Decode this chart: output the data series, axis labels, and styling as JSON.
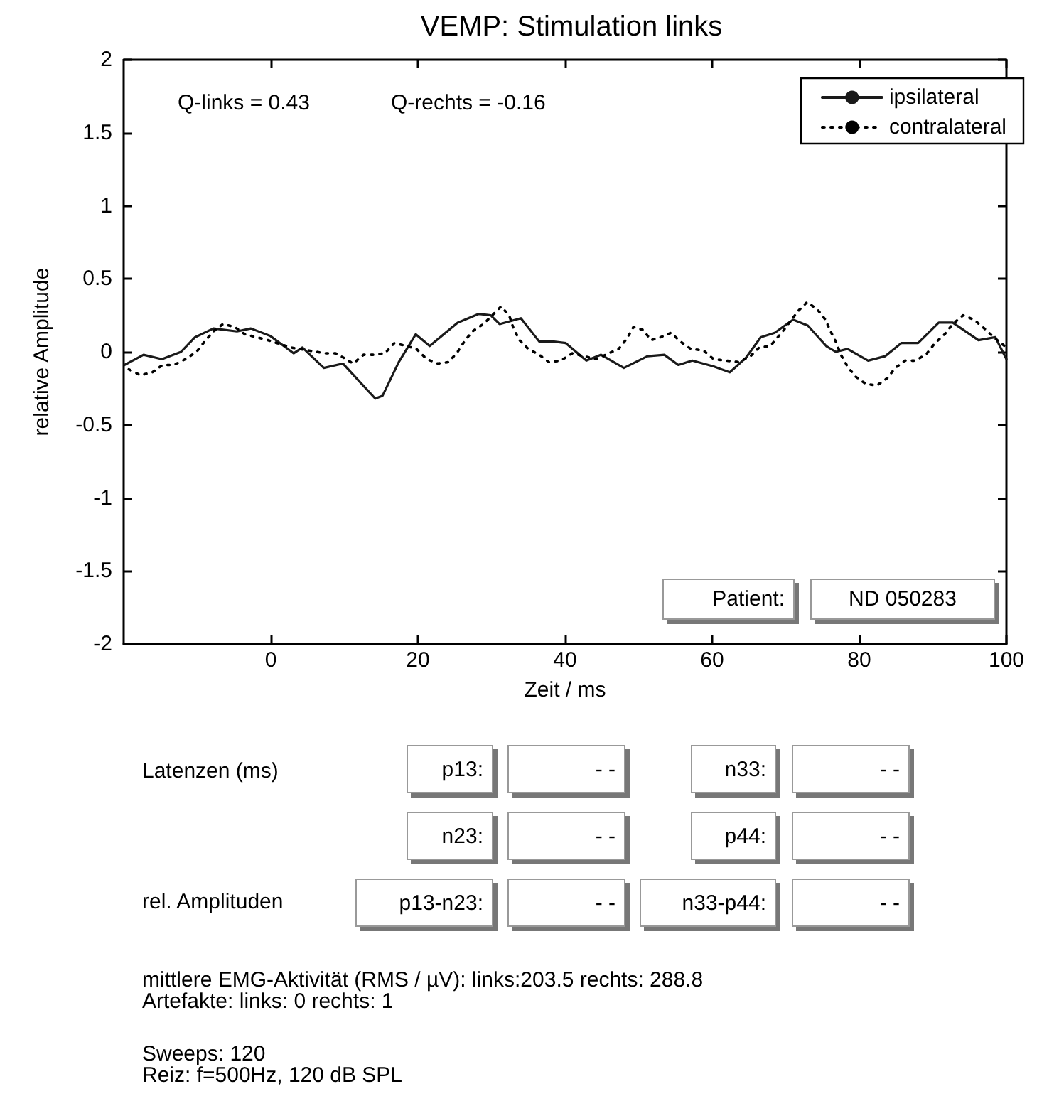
{
  "chart_data": {
    "type": "line",
    "title": "VEMP: Stimulation links",
    "xlabel": "Zeit / ms",
    "ylabel": "relative Amplitude",
    "xlim": [
      -20,
      100
    ],
    "xticks": [
      0,
      20,
      40,
      60,
      80,
      100
    ],
    "ylim": [
      -2,
      2
    ],
    "yticks": [
      -2,
      -1.5,
      -1,
      -0.5,
      0,
      0.5,
      1,
      1.5,
      2
    ],
    "grid": false,
    "legend": "top right",
    "marker": "none",
    "series": [
      {
        "name": "ipsilateral",
        "color": "#1a1a1a",
        "line_style": "solid",
        "x": [
          -19.9,
          -17.3,
          -14.8,
          -12.2,
          -10.3,
          -7.8,
          -4.6,
          -2.7,
          -0.1,
          3.1,
          4.3,
          7.2,
          9.8,
          12.0,
          14.2,
          15.2,
          17.4,
          19.7,
          21.6,
          25.4,
          28.3,
          29.9,
          31.1,
          34.0,
          36.5,
          38.5,
          40.1,
          42.9,
          44.9,
          48.0,
          51.2,
          53.5,
          55.4,
          57.3,
          60.2,
          62.4,
          64.6,
          66.6,
          68.5,
          71.0,
          73.0,
          75.5,
          76.8,
          78.4,
          81.2,
          83.5,
          85.7,
          88.0,
          90.8,
          92.7,
          96.2,
          98.5,
          100
        ],
        "values": [
          -0.09,
          -0.02,
          -0.05,
          0,
          0.1,
          0.16,
          0.14,
          0.16,
          0.11,
          -0.01,
          0.03,
          -0.11,
          -0.08,
          -0.2,
          -0.32,
          -0.3,
          -0.07,
          0.12,
          0.04,
          0.2,
          0.26,
          0.25,
          0.19,
          0.23,
          0.07,
          0.07,
          0.06,
          -0.06,
          -0.02,
          -0.11,
          -0.03,
          -0.02,
          -0.09,
          -0.06,
          -0.1,
          -0.14,
          -0.04,
          0.1,
          0.13,
          0.22,
          0.18,
          0.04,
          0,
          0.02,
          -0.06,
          -0.03,
          0.06,
          0.06,
          0.2,
          0.2,
          0.08,
          0.1,
          -0.05
        ]
      },
      {
        "name": "contralateral",
        "color": "#000000",
        "line_style": "dotted",
        "x": [
          -19.3,
          -17.7,
          -16.1,
          -14.7,
          -13.2,
          -11.6,
          -10.1,
          -9.0,
          -7.8,
          -6.5,
          -4.9,
          -3.5,
          -1.9,
          -0.4,
          2.7,
          7.4,
          8.8,
          9.9,
          11.2,
          12.6,
          13.9,
          15.5,
          16.8,
          18.4,
          19.8,
          21.2,
          22.7,
          24.2,
          25.4,
          26.3,
          27.4,
          28.9,
          31.3,
          32.4,
          33.0,
          33.8,
          35.0,
          36.5,
          37.8,
          39.4,
          41.0,
          44.2,
          47.3,
          48.4,
          49.3,
          50.6,
          51.7,
          53.0,
          54.4,
          55.7,
          57.1,
          58.8,
          60.2,
          61.9,
          63.6,
          65.2,
          66.4,
          67.9,
          69.6,
          71.7,
          72.9,
          74.3,
          75.4,
          76.1,
          76.9,
          77.5,
          78.4,
          79.5,
          80.9,
          82.4,
          83.8,
          84.9,
          86.2,
          87.7,
          89.2,
          90.3,
          91.6,
          92.7,
          94.1,
          95.6,
          97.0,
          98.5,
          100
        ],
        "values": [
          -0.12,
          -0.16,
          -0.14,
          -0.09,
          -0.09,
          -0.05,
          0,
          0.07,
          0.14,
          0.19,
          0.17,
          0.12,
          0.1,
          0.08,
          0.03,
          -0.01,
          -0.01,
          -0.04,
          -0.08,
          -0.02,
          -0.02,
          -0.01,
          0.06,
          0.04,
          0.02,
          -0.05,
          -0.08,
          -0.07,
          0,
          0.07,
          0.14,
          0.19,
          0.31,
          0.25,
          0.16,
          0.08,
          0.02,
          -0.02,
          -0.07,
          -0.06,
          -0.01,
          -0.05,
          0.02,
          0.09,
          0.17,
          0.15,
          0.08,
          0.1,
          0.13,
          0.07,
          0.02,
          0.01,
          -0.05,
          -0.06,
          -0.07,
          -0.03,
          0.03,
          0.04,
          0.14,
          0.28,
          0.34,
          0.29,
          0.22,
          0.14,
          0.06,
          -0.02,
          -0.1,
          -0.17,
          -0.22,
          -0.23,
          -0.18,
          -0.11,
          -0.06,
          -0.06,
          -0.01,
          0.06,
          0.12,
          0.19,
          0.25,
          0.22,
          0.16,
          0.09,
          0.03
        ]
      }
    ],
    "annotations": [
      "Q-links = 0.43",
      "Q-rechts = -0.16",
      "Patient:",
      "ND 050283",
      "Latenzen (ms)",
      "p13:",
      "- -",
      "n33:",
      "- -",
      "n23:",
      "- -",
      "p44:",
      "- -",
      "rel. Amplituden",
      "p13-n23:",
      "- -",
      "n33-p44:",
      "- -",
      "mittlere EMG-Aktivität (RMS / µV): links:203.5 rechts: 288.8",
      "Artefakte: links: 0 rechts: 1",
      "Sweeps: 120",
      "Reiz: f=500Hz, 120 dB SPL"
    ]
  }
}
